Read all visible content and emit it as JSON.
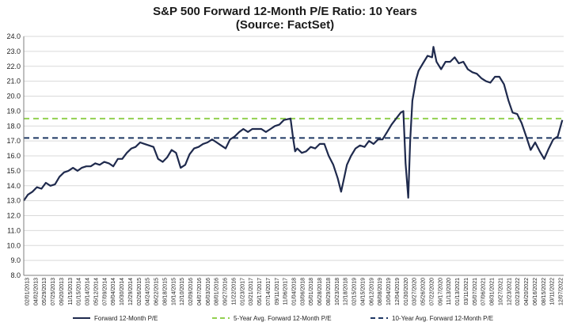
{
  "chart_data": {
    "type": "line",
    "title": "S&P 500 Forward 12-Month P/E Ratio: 10 Years",
    "subtitle": "(Source: FactSet)",
    "xlabel": "",
    "ylabel": "",
    "ylim": [
      8.0,
      24.0
    ],
    "yticks": [
      "24.0",
      "23.0",
      "22.0",
      "21.0",
      "20.0",
      "19.0",
      "18.0",
      "17.0",
      "16.0",
      "15.0",
      "14.0",
      "13.0",
      "12.0",
      "11.0",
      "10.0",
      "9.0",
      "8.0"
    ],
    "x_tick_labels": [
      "02/01/2013",
      "04/02/2013",
      "05/29/2013",
      "07/25/2013",
      "09/20/2013",
      "11/15/2013",
      "01/15/2014",
      "03/14/2014",
      "05/12/2014",
      "07/09/2014",
      "09/04/2014",
      "10/30/2014",
      "12/29/2014",
      "02/26/2015",
      "04/24/2015",
      "06/22/2015",
      "08/18/2015",
      "10/14/2015",
      "12/10/2015",
      "02/09/2016",
      "04/07/2016",
      "06/03/2016",
      "08/01/2016",
      "09/27/2016",
      "11/22/2016",
      "01/23/2017",
      "03/21/2017",
      "05/17/2017",
      "07/14/2017",
      "09/11/2017",
      "11/06/2017",
      "01/04/2018",
      "03/06/2018",
      "05/01/2018",
      "06/28/2018",
      "08/29/2018",
      "10/23/2018",
      "12/18/2018",
      "02/15/2019",
      "04/15/2019",
      "06/12/2019",
      "08/08/2019",
      "10/04/2019",
      "12/04/2019",
      "01/30/2020",
      "03/27/2020",
      "05/26/2020",
      "07/22/2020",
      "09/17/2020",
      "11/13/2020",
      "01/13/2021",
      "03/11/2021",
      "05/07/2021",
      "07/06/2021",
      "08/31/2021",
      "10/27/2021",
      "12/23/2021",
      "02/23/2022",
      "04/20/2022",
      "06/16/2022",
      "08/15/2022",
      "10/11/2022",
      "12/07/2022"
    ],
    "five_year_avg": 18.5,
    "ten_year_avg": 17.2,
    "legend": [
      "Forward 12-Month P/E",
      "5-Year Avg. Forward 12-Month P/E",
      "10-Year Avg. Forward 12-Month P/E"
    ],
    "legend_position": "bottom",
    "grid": true,
    "series": [
      {
        "name": "Forward 12-Month P/E",
        "x": [
          "2013-02-01",
          "2013-03-01",
          "2013-04-01",
          "2013-05-01",
          "2013-06-01",
          "2013-07-01",
          "2013-08-01",
          "2013-09-01",
          "2013-10-01",
          "2013-11-01",
          "2013-12-01",
          "2014-01-01",
          "2014-02-01",
          "2014-03-01",
          "2014-04-01",
          "2014-05-01",
          "2014-06-01",
          "2014-07-01",
          "2014-08-01",
          "2014-09-01",
          "2014-10-01",
          "2014-11-01",
          "2014-12-01",
          "2015-01-01",
          "2015-02-01",
          "2015-03-01",
          "2015-04-01",
          "2015-05-01",
          "2015-06-01",
          "2015-07-01",
          "2015-08-01",
          "2015-09-01",
          "2015-10-01",
          "2015-11-01",
          "2015-12-01",
          "2016-01-01",
          "2016-02-01",
          "2016-03-01",
          "2016-04-01",
          "2016-05-01",
          "2016-06-01",
          "2016-07-01",
          "2016-08-01",
          "2016-09-01",
          "2016-10-01",
          "2016-11-01",
          "2016-12-01",
          "2017-01-01",
          "2017-02-01",
          "2017-03-01",
          "2017-04-01",
          "2017-05-01",
          "2017-06-01",
          "2017-07-01",
          "2017-08-01",
          "2017-09-01",
          "2017-10-01",
          "2017-11-01",
          "2017-12-01",
          "2018-01-15",
          "2018-02-01",
          "2018-02-15",
          "2018-03-01",
          "2018-04-01",
          "2018-05-01",
          "2018-06-01",
          "2018-07-01",
          "2018-08-01",
          "2018-09-01",
          "2018-10-01",
          "2018-11-01",
          "2018-12-01",
          "2018-12-24",
          "2019-01-15",
          "2019-02-01",
          "2019-03-01",
          "2019-04-01",
          "2019-05-01",
          "2019-06-01",
          "2019-07-01",
          "2019-08-01",
          "2019-09-01",
          "2019-10-01",
          "2019-11-01",
          "2019-12-01",
          "2020-01-01",
          "2020-02-01",
          "2020-02-19",
          "2020-03-05",
          "2020-03-23",
          "2020-04-05",
          "2020-04-20",
          "2020-05-01",
          "2020-05-15",
          "2020-06-01",
          "2020-07-01",
          "2020-08-01",
          "2020-09-01",
          "2020-09-10",
          "2020-10-01",
          "2020-11-01",
          "2020-12-01",
          "2021-01-01",
          "2021-02-01",
          "2021-03-01",
          "2021-04-01",
          "2021-05-01",
          "2021-06-01",
          "2021-07-01",
          "2021-08-01",
          "2021-09-01",
          "2021-10-01",
          "2021-11-01",
          "2021-12-01",
          "2022-01-01",
          "2022-02-01",
          "2022-03-01",
          "2022-04-01",
          "2022-05-01",
          "2022-06-01",
          "2022-07-01",
          "2022-08-01",
          "2022-09-01",
          "2022-10-01",
          "2022-11-01",
          "2022-12-01",
          "2023-01-01",
          "2023-02-01"
        ],
        "y": [
          13.0,
          13.4,
          13.6,
          13.9,
          13.8,
          14.2,
          14.0,
          14.1,
          14.6,
          14.9,
          15.0,
          15.2,
          15.0,
          15.2,
          15.3,
          15.3,
          15.5,
          15.4,
          15.6,
          15.5,
          15.3,
          15.8,
          15.8,
          16.2,
          16.5,
          16.6,
          16.9,
          16.8,
          16.7,
          16.6,
          15.8,
          15.6,
          15.9,
          16.4,
          16.2,
          15.2,
          15.4,
          16.1,
          16.5,
          16.6,
          16.8,
          16.9,
          17.1,
          16.9,
          16.7,
          16.5,
          17.1,
          17.3,
          17.6,
          17.8,
          17.6,
          17.8,
          17.8,
          17.8,
          17.6,
          17.8,
          18.0,
          18.1,
          18.4,
          18.5,
          17.2,
          16.3,
          16.5,
          16.2,
          16.3,
          16.6,
          16.5,
          16.8,
          16.8,
          16.0,
          15.4,
          14.5,
          13.6,
          14.6,
          15.4,
          16.0,
          16.5,
          16.7,
          16.6,
          17.0,
          16.8,
          17.1,
          17.1,
          17.6,
          18.1,
          18.5,
          18.9,
          19.0,
          15.5,
          13.2,
          17.0,
          19.7,
          20.3,
          21.1,
          21.7,
          22.2,
          22.7,
          22.6,
          23.3,
          22.3,
          21.8,
          22.3,
          22.3,
          22.6,
          22.2,
          22.3,
          21.8,
          21.6,
          21.5,
          21.2,
          21.0,
          20.9,
          21.3,
          21.3,
          20.8,
          19.7,
          18.9,
          18.8,
          18.2,
          17.3,
          16.4,
          16.9,
          16.3,
          15.8,
          16.5,
          17.1,
          17.3,
          18.4
        ]
      }
    ]
  }
}
